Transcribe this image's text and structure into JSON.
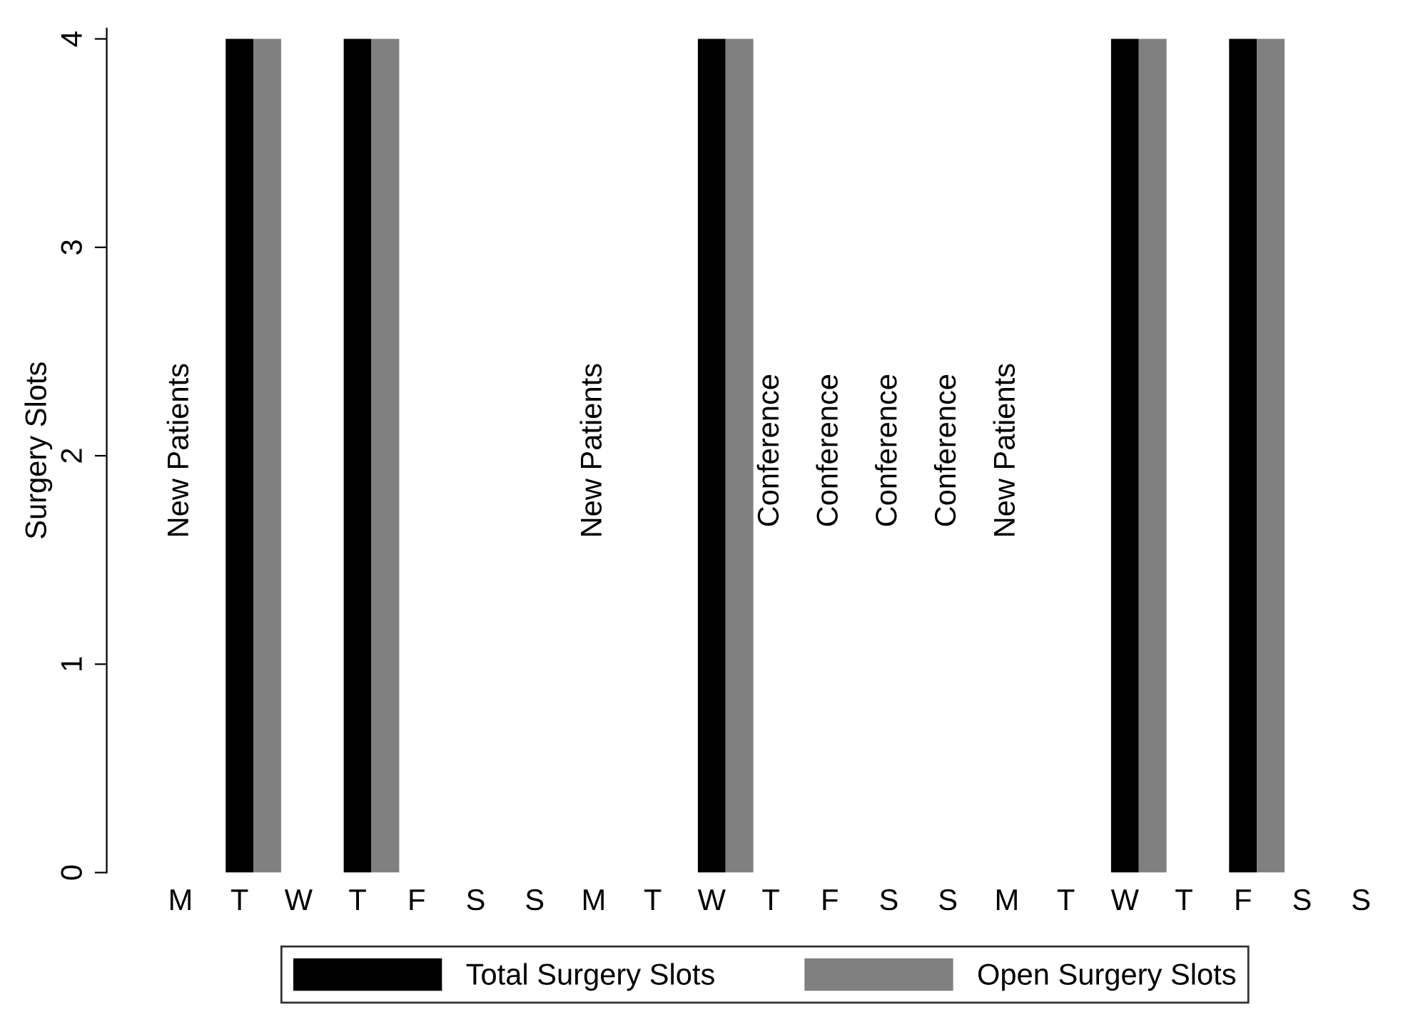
{
  "chart_data": {
    "type": "bar",
    "ylabel": "Surgery Slots",
    "categories": [
      "M",
      "T",
      "W",
      "T",
      "F",
      "S",
      "S",
      "M",
      "T",
      "W",
      "T",
      "F",
      "S",
      "S",
      "M",
      "T",
      "W",
      "T",
      "F",
      "S",
      "S"
    ],
    "ylim": [
      0,
      4.05
    ],
    "yticks": [
      0,
      1,
      2,
      3,
      4
    ],
    "series": [
      {
        "name": "Total Surgery Slots",
        "color": "#000000",
        "values": [
          0,
          4,
          0,
          4,
          0,
          0,
          0,
          0,
          0,
          4,
          0,
          0,
          0,
          0,
          0,
          0,
          4,
          0,
          4,
          0,
          0
        ]
      },
      {
        "name": "Open Surgery Slots",
        "color": "#808080",
        "values": [
          0,
          4,
          0,
          4,
          0,
          0,
          0,
          0,
          0,
          4,
          0,
          0,
          0,
          0,
          0,
          0,
          4,
          0,
          4,
          0,
          0
        ]
      },
      {
        "color": "#000000",
        "values": [
          null,
          null,
          null,
          null,
          null,
          null,
          null,
          null,
          null,
          null,
          null,
          null,
          null,
          null,
          null,
          null,
          null,
          null,
          null,
          null,
          null
        ],
        "value_labels": [
          "New Patients",
          null,
          null,
          null,
          null,
          null,
          null,
          "New Patients",
          null,
          null,
          "Conference",
          "Conference",
          "Conference",
          "Conference",
          "New Patients",
          null,
          null,
          null,
          null,
          null,
          null
        ]
      }
    ],
    "legend": "bottom",
    "grid": false
  }
}
